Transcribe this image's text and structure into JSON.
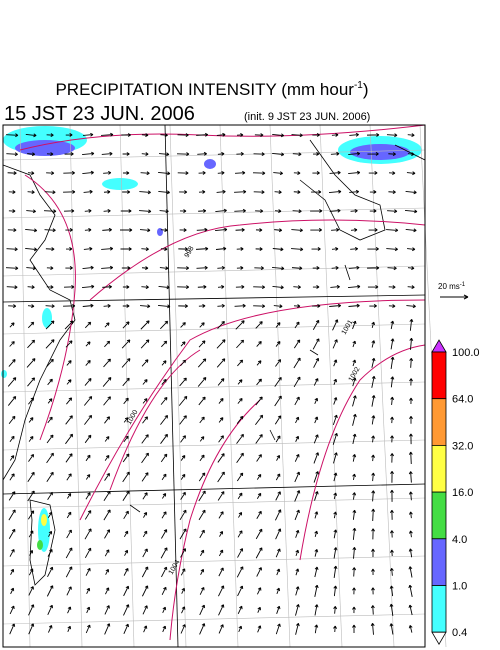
{
  "header": {
    "title": "PRECIPITATION INTENSITY (mm hour",
    "title_sup": "-1",
    "title_end": ")",
    "valid_time": "15 JST 23 JUN. 2006",
    "init_time": "(init. 9 JST 23 JUN. 2006)"
  },
  "reference_vector": {
    "label": "20 ms",
    "label_sup": "-1"
  },
  "colorbar": {
    "labels": [
      "100.0",
      "64.0",
      "32.0",
      "16.0",
      "4.0",
      "1.0",
      "0.4"
    ],
    "colors": [
      "#cc33ff",
      "#ff0000",
      "#ff9933",
      "#ffff44",
      "#44dd44",
      "#6666ff",
      "#44ffff",
      "#ffffff"
    ]
  },
  "contour_labels": [
    "998",
    "1001",
    "1002",
    "1000",
    "1004"
  ]
}
